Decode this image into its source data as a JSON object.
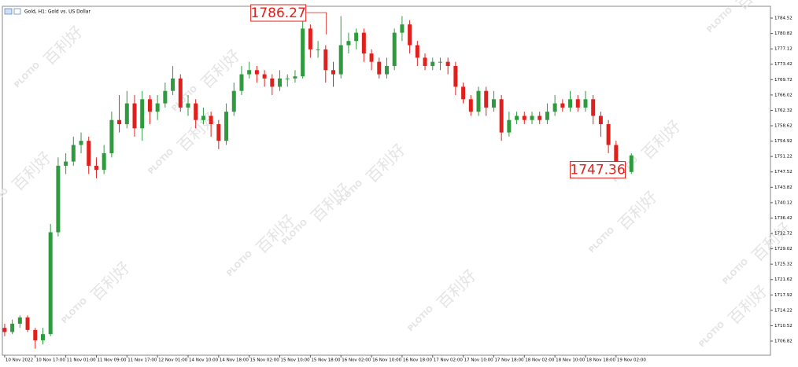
{
  "chart_data": {
    "type": "candlestick",
    "title": "Gold, H1:  Gold vs. US Dollar",
    "watermark": "百利好",
    "watermark_brand": "PLOTIO",
    "up_color": "#2e9b3e",
    "down_color": "#e0201c",
    "annotation_color": "#e0201c",
    "open": [
      1710,
      1709,
      1711,
      1712.5,
      1709.5,
      1707,
      1708.5,
      1733,
      1749,
      1750,
      1754,
      1755,
      1749,
      1748,
      1752,
      1760,
      1759,
      1764,
      1758,
      1765,
      1762,
      1764,
      1767,
      1770,
      1763,
      1764,
      1760,
      1761,
      1759,
      1755,
      1762,
      1767,
      1771,
      1772,
      1771,
      1770,
      1768,
      1770,
      1770,
      1770.5,
      1782,
      1777,
      1777,
      1772,
      1771,
      1778,
      1779,
      1781,
      1776,
      1774,
      1771,
      1773,
      1781,
      1783,
      1778,
      1775,
      1773,
      1774,
      1774,
      1773,
      1768,
      1765,
      1762,
      1767,
      1763,
      1765,
      1757,
      1760,
      1761,
      1760,
      1761,
      1760,
      1762,
      1764,
      1763,
      1765,
      1763,
      1765,
      1761,
      1759,
      1754,
      1749,
      1747.5
    ],
    "high": [
      1711,
      1712,
      1713,
      1713,
      1710,
      1710,
      1735,
      1751,
      1752,
      1756,
      1757,
      1756,
      1751,
      1754,
      1762,
      1766,
      1767,
      1766,
      1767,
      1766,
      1766,
      1769,
      1773,
      1771,
      1766,
      1765,
      1763,
      1762,
      1760,
      1764,
      1769,
      1773,
      1774,
      1773,
      1772,
      1771,
      1772,
      1771,
      1772,
      1786.27,
      1783,
      1779,
      1778,
      1774,
      1785,
      1781,
      1782,
      1782,
      1777,
      1775,
      1775,
      1782,
      1785,
      1784,
      1779,
      1776,
      1775,
      1775,
      1775,
      1774,
      1769,
      1766,
      1768,
      1768,
      1767,
      1766,
      1762,
      1762,
      1762,
      1762,
      1762,
      1764,
      1766,
      1765,
      1767,
      1766,
      1767,
      1766,
      1762,
      1760,
      1755,
      1750,
      1752
    ],
    "low": [
      1708,
      1708.5,
      1710,
      1709,
      1705,
      1706,
      1708,
      1732,
      1747,
      1749,
      1752,
      1747,
      1746,
      1747,
      1751,
      1757,
      1758,
      1756,
      1755,
      1759,
      1760,
      1763,
      1766,
      1762,
      1761,
      1758,
      1759,
      1756,
      1753,
      1754,
      1761,
      1766,
      1770,
      1769,
      1768,
      1766,
      1767,
      1768,
      1769,
      1770,
      1775,
      1775,
      1769,
      1768,
      1770,
      1776,
      1777,
      1774,
      1772,
      1770,
      1770,
      1772,
      1779,
      1776,
      1773,
      1772,
      1772,
      1772,
      1771,
      1766,
      1764,
      1761,
      1761,
      1761,
      1762,
      1755,
      1756,
      1759,
      1759,
      1759,
      1759,
      1759,
      1761,
      1762,
      1762,
      1762,
      1762,
      1759,
      1756,
      1752,
      1748,
      1747.36,
      1747
    ],
    "close": [
      1709,
      1711,
      1712.5,
      1709.5,
      1707,
      1708.5,
      1733,
      1749,
      1750,
      1754,
      1755,
      1749,
      1748,
      1752,
      1760,
      1759,
      1764,
      1758,
      1765,
      1762,
      1764,
      1767,
      1770,
      1763,
      1764,
      1760,
      1761,
      1759,
      1755,
      1762,
      1767,
      1771,
      1772,
      1771,
      1770,
      1768,
      1770,
      1770,
      1770.5,
      1782,
      1777,
      1777,
      1772,
      1771,
      1778,
      1779,
      1781,
      1776,
      1774,
      1771,
      1773,
      1781,
      1783,
      1778,
      1775,
      1773,
      1774,
      1774,
      1773,
      1768,
      1765,
      1762,
      1767,
      1763,
      1765,
      1757,
      1760,
      1761,
      1760,
      1761,
      1760,
      1762,
      1764,
      1763,
      1765,
      1763,
      1765,
      1761,
      1759,
      1754,
      1749,
      1747.5,
      1751.5
    ],
    "ylim": [
      1703.42,
      1787.36
    ],
    "yticks": [
      1784.52,
      1780.82,
      1777.12,
      1773.42,
      1769.72,
      1766.02,
      1762.32,
      1758.62,
      1754.92,
      1751.22,
      1747.52,
      1743.82,
      1740.12,
      1736.42,
      1732.72,
      1729.02,
      1725.32,
      1721.62,
      1717.92,
      1714.22,
      1710.52,
      1706.82
    ],
    "xlim": [
      -0.3,
      100.2
    ],
    "xticks": [
      {
        "value": 0,
        "label": "10 Nov 2022"
      },
      {
        "value": 4,
        "label": "10 Nov 17:00"
      },
      {
        "value": 8,
        "label": "11 Nov 01:00"
      },
      {
        "value": 12,
        "label": "11 Nov 09:00"
      },
      {
        "value": 16,
        "label": "11 Nov 17:00"
      },
      {
        "value": 20,
        "label": "12 Nov 01:00"
      },
      {
        "value": 24,
        "label": "14 Nov 10:00"
      },
      {
        "value": 28,
        "label": "14 Nov 18:00"
      },
      {
        "value": 32,
        "label": "15 Nov 02:00"
      },
      {
        "value": 36,
        "label": "15 Nov 10:00"
      },
      {
        "value": 40,
        "label": "15 Nov 18:00"
      },
      {
        "value": 44,
        "label": "16 Nov 02:00"
      },
      {
        "value": 48,
        "label": "16 Nov 10:00"
      },
      {
        "value": 52,
        "label": "16 Nov 18:00"
      },
      {
        "value": 56,
        "label": "17 Nov 02:00"
      },
      {
        "value": 60,
        "label": "17 Nov 10:00"
      },
      {
        "value": 64,
        "label": "17 Nov 18:00"
      },
      {
        "value": 68,
        "label": "18 Nov 02:00"
      },
      {
        "value": 72,
        "label": "18 Nov 10:00"
      },
      {
        "value": 76,
        "label": "18 Nov 18:00"
      },
      {
        "value": 80,
        "label": "19 Nov 02:00"
      }
    ],
    "annotations": [
      {
        "series": "high",
        "index": 39
      },
      {
        "series": "low",
        "index": 81
      }
    ]
  }
}
